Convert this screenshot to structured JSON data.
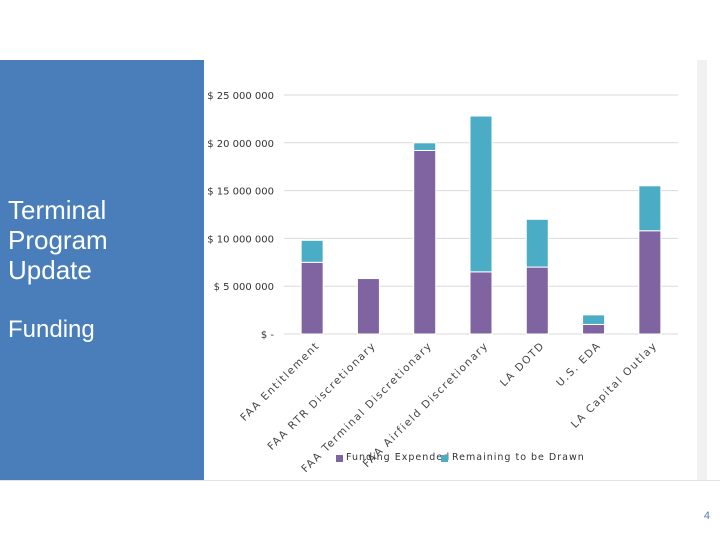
{
  "slide": {
    "title": "Terminal Program Update",
    "subtitle": "Funding",
    "page_number": "4"
  },
  "colors": {
    "side_panel": "#4a7ebb",
    "funding_expended": "#8064a2",
    "remaining": "#4bacc6"
  },
  "chart_data": {
    "type": "bar",
    "stacked": true,
    "categories": [
      "FAA Entitlement",
      "FAA RTR Discretionary",
      "FAA Terminal Discretionary",
      "FAA Airfield Discretionary",
      "LA DOTD",
      "U.S. EDA",
      "LA Capital Outlay"
    ],
    "series": [
      {
        "name": "Funding Expended",
        "values": [
          7500000,
          5800000,
          19200000,
          6500000,
          7000000,
          1000000,
          10800000
        ]
      },
      {
        "name": "Remaining to be Drawn",
        "values": [
          2300000,
          0,
          800000,
          16300000,
          5000000,
          1000000,
          4700000
        ]
      }
    ],
    "ytick_labels": [
      "$ -",
      "$ 5 000 000",
      "$ 10 000 000",
      "$ 15 000 000",
      "$ 20 000 000",
      "$ 25 000 000"
    ],
    "ylim": [
      0,
      25000000
    ],
    "grid": true,
    "legend_position": "bottom"
  }
}
